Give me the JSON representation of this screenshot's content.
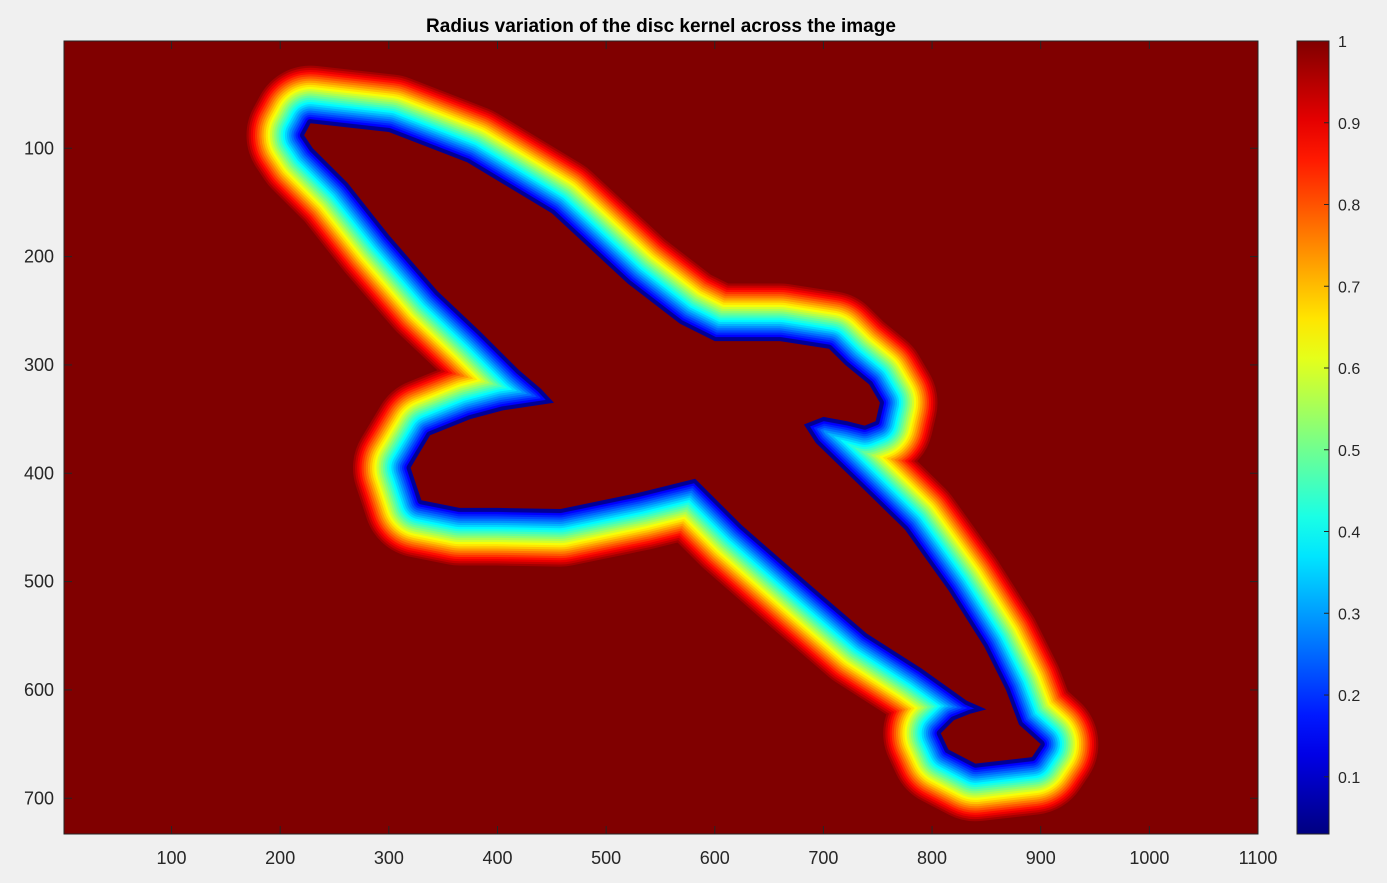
{
  "chart_data": {
    "type": "heatmap",
    "title": "Radius variation of the disc kernel across the image",
    "xlabel": "",
    "ylabel": "",
    "xlim": [
      1,
      1100
    ],
    "ylim": [
      1,
      733
    ],
    "y_reversed": true,
    "x_ticks": [
      100,
      200,
      300,
      400,
      500,
      600,
      700,
      800,
      900,
      1000,
      1100
    ],
    "y_ticks": [
      100,
      200,
      300,
      400,
      500,
      600,
      700
    ],
    "colormap": "jet",
    "colorbar": {
      "range": [
        0.03,
        1
      ],
      "ticks": [
        0.1,
        0.2,
        0.3,
        0.4,
        0.5,
        0.6,
        0.7,
        0.8,
        0.9,
        1
      ],
      "tick_labels": [
        "0.1",
        "0.2",
        "0.3",
        "0.4",
        "0.5",
        "0.6",
        "0.7",
        "0.8",
        "0.9",
        "1"
      ]
    },
    "background_value": 1,
    "description_values": {
      "inside_outline_value": 1,
      "outline_min_value": 0.05,
      "outline_band_width_units": 55
    },
    "outline_contour": [
      [
        228,
        77
      ],
      [
        300,
        85
      ],
      [
        372,
        113
      ],
      [
        450,
        160
      ],
      [
        520,
        225
      ],
      [
        568,
        262
      ],
      [
        600,
        278
      ],
      [
        660,
        278
      ],
      [
        705,
        285
      ],
      [
        720,
        300
      ],
      [
        742,
        318
      ],
      [
        752,
        335
      ],
      [
        748,
        352
      ],
      [
        738,
        356
      ],
      [
        722,
        352
      ],
      [
        700,
        348
      ],
      [
        682,
        355
      ],
      [
        693,
        372
      ],
      [
        730,
        408
      ],
      [
        775,
        452
      ],
      [
        815,
        508
      ],
      [
        848,
        560
      ],
      [
        868,
        600
      ],
      [
        880,
        632
      ],
      [
        900,
        650
      ],
      [
        892,
        662
      ],
      [
        840,
        668
      ],
      [
        815,
        655
      ],
      [
        808,
        640
      ],
      [
        820,
        628
      ],
      [
        835,
        622
      ],
      [
        850,
        618
      ],
      [
        832,
        610
      ],
      [
        790,
        580
      ],
      [
        740,
        548
      ],
      [
        690,
        505
      ],
      [
        625,
        448
      ],
      [
        582,
        405
      ],
      [
        530,
        418
      ],
      [
        458,
        433
      ],
      [
        400,
        432
      ],
      [
        365,
        432
      ],
      [
        330,
        425
      ],
      [
        320,
        395
      ],
      [
        338,
        365
      ],
      [
        375,
        350
      ],
      [
        405,
        342
      ],
      [
        452,
        335
      ],
      [
        440,
        322
      ],
      [
        420,
        305
      ],
      [
        385,
        270
      ],
      [
        345,
        232
      ],
      [
        300,
        180
      ],
      [
        262,
        132
      ],
      [
        230,
        100
      ],
      [
        222,
        88
      ]
    ]
  }
}
